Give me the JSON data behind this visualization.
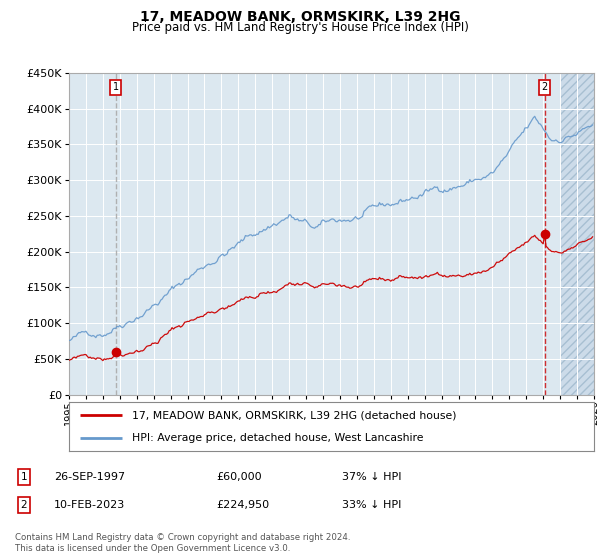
{
  "title": "17, MEADOW BANK, ORMSKIRK, L39 2HG",
  "subtitle": "Price paid vs. HM Land Registry's House Price Index (HPI)",
  "sale1_date": "26-SEP-1997",
  "sale1_price": 60000,
  "sale1_label": "37% ↓ HPI",
  "sale1_x": 1997.75,
  "sale2_date": "10-FEB-2023",
  "sale2_price": 224950,
  "sale2_label": "33% ↓ HPI",
  "sale2_x": 2023.12,
  "legend_line1": "17, MEADOW BANK, ORMSKIRK, L39 2HG (detached house)",
  "legend_line2": "HPI: Average price, detached house, West Lancashire",
  "footnote": "Contains HM Land Registry data © Crown copyright and database right 2024.\nThis data is licensed under the Open Government Licence v3.0.",
  "price_line_color": "#cc0000",
  "hpi_line_color": "#6699cc",
  "bg_color": "#dce8f0",
  "xmin": 1995,
  "xmax": 2026,
  "ymin": 0,
  "ymax": 450000,
  "yticks": [
    0,
    50000,
    100000,
    150000,
    200000,
    250000,
    300000,
    350000,
    400000,
    450000
  ],
  "hatch_start": 2024.0,
  "sale1_vline_color": "#999999",
  "sale2_vline_color": "#cc0000"
}
